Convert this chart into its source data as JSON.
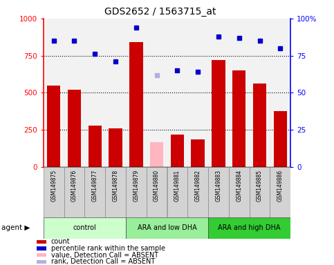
{
  "title": "GDS2652 / 1563715_at",
  "samples": [
    "GSM149875",
    "GSM149876",
    "GSM149877",
    "GSM149878",
    "GSM149879",
    "GSM149880",
    "GSM149881",
    "GSM149882",
    "GSM149883",
    "GSM149884",
    "GSM149885",
    "GSM149886"
  ],
  "counts": [
    550,
    520,
    280,
    260,
    840,
    null,
    220,
    185,
    720,
    650,
    560,
    375
  ],
  "absent_bar_index": 5,
  "absent_bar_value": 165,
  "percentile_ranks": [
    85,
    85,
    76,
    71,
    94,
    null,
    65,
    64,
    88,
    87,
    85,
    80
  ],
  "absent_rank_index": 5,
  "absent_rank_value": 62,
  "groups": [
    {
      "label": "control",
      "start": 0,
      "end": 3,
      "color": "#ccffcc"
    },
    {
      "label": "ARA and low DHA",
      "start": 4,
      "end": 7,
      "color": "#99ee99"
    },
    {
      "label": "ARA and high DHA",
      "start": 8,
      "end": 11,
      "color": "#33cc33"
    }
  ],
  "bar_color": "#cc0000",
  "absent_bar_color": "#ffb6c1",
  "dot_color": "#0000cc",
  "absent_dot_color": "#b0b0e0",
  "ylim_left": [
    0,
    1000
  ],
  "ylim_right": [
    0,
    100
  ],
  "yticks_left": [
    0,
    250,
    500,
    750,
    1000
  ],
  "yticks_right": [
    0,
    25,
    50,
    75,
    100
  ],
  "legend_items": [
    {
      "label": "count",
      "color": "#cc0000"
    },
    {
      "label": "percentile rank within the sample",
      "color": "#0000cc"
    },
    {
      "label": "value, Detection Call = ABSENT",
      "color": "#ffb6c1"
    },
    {
      "label": "rank, Detection Call = ABSENT",
      "color": "#b0b0e0"
    }
  ],
  "figsize": [
    4.83,
    3.84
  ],
  "dpi": 100
}
